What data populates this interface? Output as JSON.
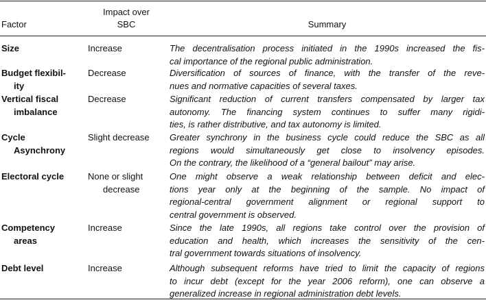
{
  "header": {
    "factor": "Factor",
    "impact": [
      "Impact over",
      "SBC"
    ],
    "summary": "Summary"
  },
  "rows": [
    {
      "factor": [
        "Size"
      ],
      "impact": [
        "Increase"
      ],
      "summary": [
        "The decentralisation process initiated in the 1990s increased the fis-",
        "cal importance of the regional public administration."
      ]
    },
    {
      "factor": [
        "Budget flexibil-",
        "ity"
      ],
      "impact": [
        "Decrease"
      ],
      "summary": [
        "Diversification of sources of finance, with the transfer of the reve-",
        "nues and normative capacities of several taxes."
      ]
    },
    {
      "factor": [
        "Vertical fiscal",
        "imbalance"
      ],
      "impact": [
        "Decrease"
      ],
      "summary": [
        "Significant reduction of current transfers compensated by larger tax",
        "autonomy. The financing system continues to suffer many rigidi-",
        "ties, is rather distributive, and tax autonomy is limited."
      ]
    },
    {
      "factor": [
        "Cycle",
        "Asynchrony"
      ],
      "impact": [
        "Slight decrease"
      ],
      "summary": [
        "Greater synchrony in the business cycle could reduce the SBC as all",
        "regions would simultaneously get close to insolvency episodes.",
        "On the contrary, the likelihood of a “general bailout” may arise."
      ]
    },
    {
      "factor": [
        "Electoral cycle"
      ],
      "impact": [
        "None or slight",
        "decrease"
      ],
      "summary": [
        "One might observe a weak relationship between deficit and elec-",
        "tions year only at the beginning of the sample. No impact of",
        "regional-central government alignment or regional support to",
        "central government is observed."
      ]
    },
    {
      "factor": [
        "Competency",
        "areas"
      ],
      "impact": [
        "Increase"
      ],
      "summary": [
        "Since the late 1990s, all regions take control over the provision of",
        "education and health, which increases the sensitivity of the cen-",
        "tral government towards situations of insolvency."
      ]
    },
    {
      "factor": [
        "Debt level"
      ],
      "impact": [
        "Increase"
      ],
      "summary": [
        "Although subsequent reforms have tried to limit the capacity of regions",
        "to incur debt (except for the year 2006 reform), one can observe a",
        "generalized increase in regional administration debt levels."
      ]
    }
  ]
}
